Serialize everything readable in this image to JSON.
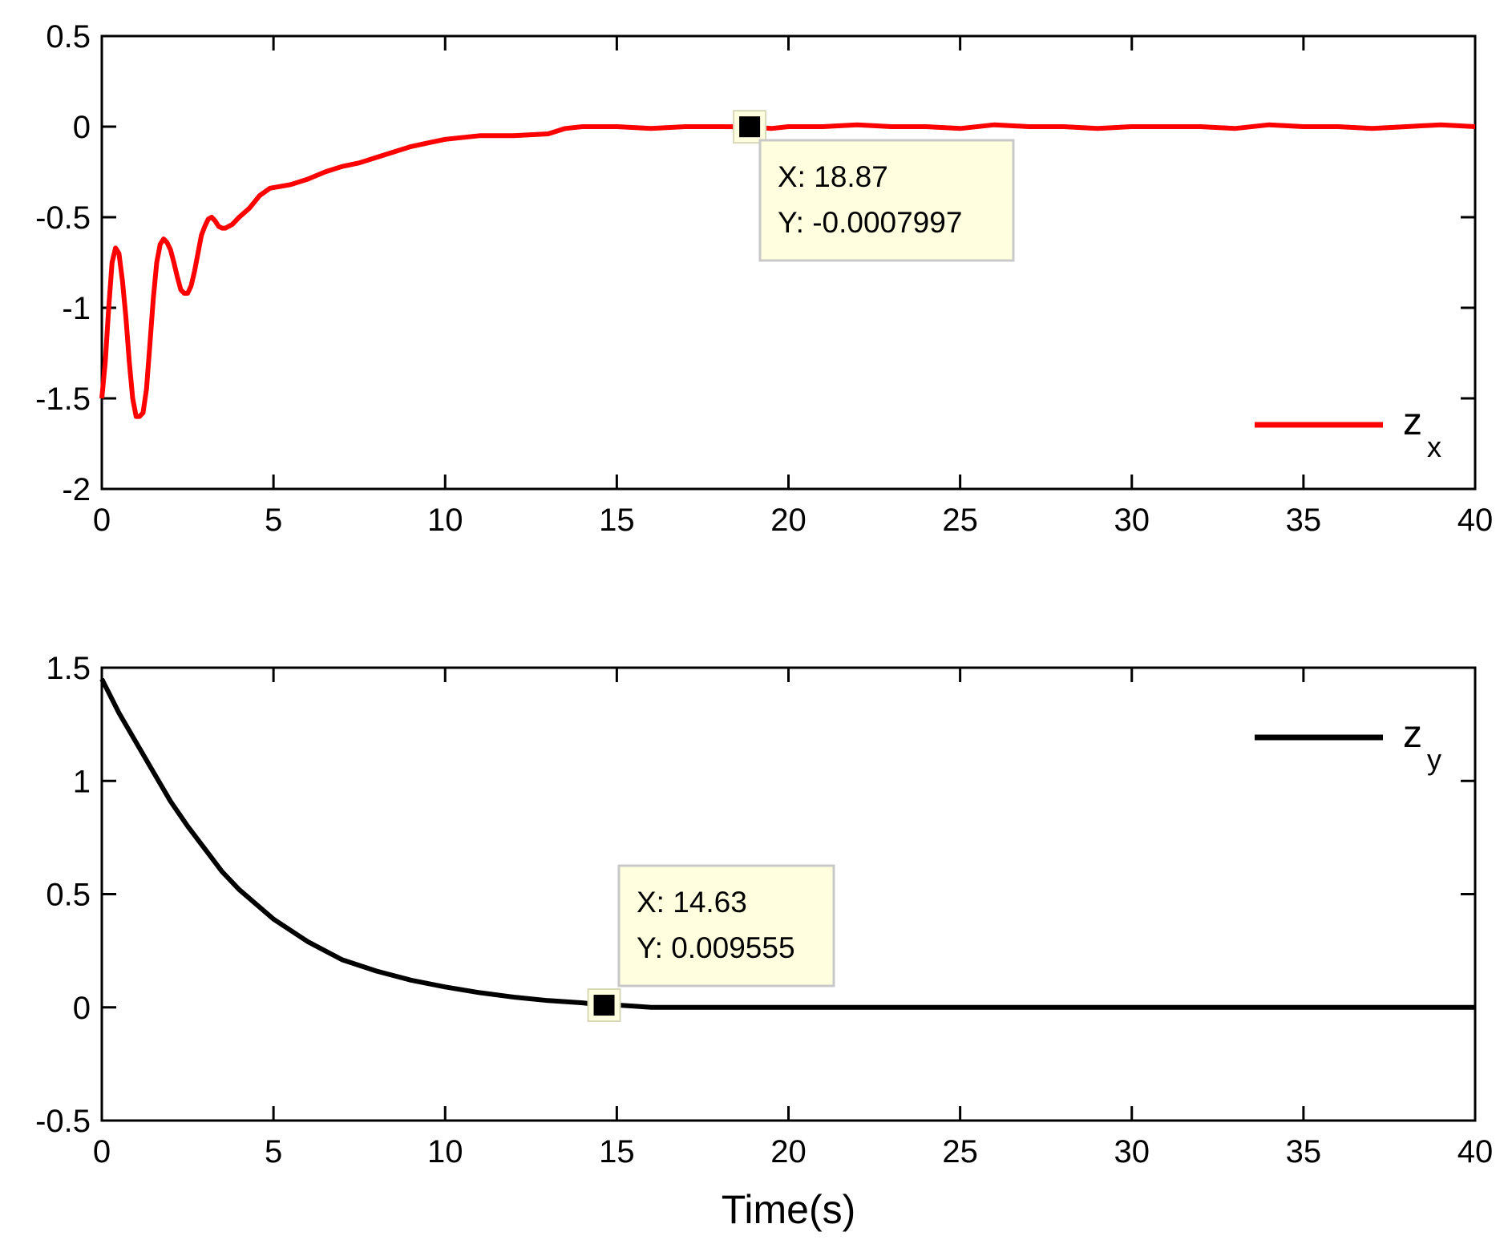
{
  "chart_data": [
    {
      "type": "line",
      "xlabel": "",
      "ylabel": "",
      "xlim": [
        0,
        40
      ],
      "ylim": [
        -2,
        0.5
      ],
      "xticks": [
        "0",
        "5",
        "10",
        "15",
        "20",
        "25",
        "30",
        "35",
        "40"
      ],
      "yticks": [
        "0.5",
        "0",
        "-0.5",
        "-1",
        "-1.5",
        "-2"
      ],
      "grid": false,
      "legend": {
        "position": "bottom-right",
        "entries": [
          {
            "name": "z",
            "subscript": "x",
            "color": "#ff0000"
          }
        ]
      },
      "series": [
        {
          "name": "z_x",
          "color": "#ff0000",
          "x": [
            0,
            0.1,
            0.2,
            0.3,
            0.4,
            0.5,
            0.6,
            0.7,
            0.8,
            0.9,
            1.0,
            1.1,
            1.2,
            1.3,
            1.4,
            1.5,
            1.6,
            1.7,
            1.8,
            1.9,
            2.0,
            2.1,
            2.2,
            2.3,
            2.4,
            2.5,
            2.6,
            2.7,
            2.8,
            2.9,
            3.0,
            3.1,
            3.2,
            3.3,
            3.4,
            3.5,
            3.6,
            3.8,
            4.0,
            4.3,
            4.6,
            4.9,
            5.2,
            5.5,
            6.0,
            6.5,
            7.0,
            7.5,
            8.0,
            8.5,
            9.0,
            9.5,
            10.0,
            11.0,
            12.0,
            13.0,
            13.5,
            14.0,
            15.0,
            16.0,
            17.0,
            18.0,
            18.87,
            19.5,
            20.0,
            21.0,
            22.0,
            23.0,
            24.0,
            25.0,
            26.0,
            27.0,
            28.0,
            29.0,
            30.0,
            31.0,
            32.0,
            33.0,
            34.0,
            35.0,
            36.0,
            37.0,
            38.0,
            39.0,
            40.0
          ],
          "y": [
            -1.5,
            -1.3,
            -1.0,
            -0.75,
            -0.67,
            -0.7,
            -0.85,
            -1.05,
            -1.3,
            -1.5,
            -1.6,
            -1.6,
            -1.58,
            -1.45,
            -1.2,
            -0.95,
            -0.75,
            -0.65,
            -0.62,
            -0.64,
            -0.68,
            -0.75,
            -0.83,
            -0.9,
            -0.92,
            -0.92,
            -0.88,
            -0.8,
            -0.7,
            -0.6,
            -0.55,
            -0.51,
            -0.5,
            -0.52,
            -0.55,
            -0.56,
            -0.56,
            -0.54,
            -0.5,
            -0.45,
            -0.38,
            -0.34,
            -0.33,
            -0.32,
            -0.29,
            -0.25,
            -0.22,
            -0.2,
            -0.17,
            -0.14,
            -0.11,
            -0.09,
            -0.07,
            -0.05,
            -0.05,
            -0.04,
            -0.01,
            0.0,
            0.0,
            -0.01,
            0.0,
            0.0,
            -0.0007997,
            -0.01,
            0.0,
            0.0,
            0.01,
            0.0,
            0.0,
            -0.01,
            0.01,
            0.0,
            0.0,
            -0.01,
            0.0,
            0.0,
            0.0,
            -0.01,
            0.01,
            0.0,
            0.0,
            -0.01,
            0.0,
            0.01,
            0.0
          ]
        }
      ],
      "datatip": {
        "x_text": "X: 18.87",
        "y_text": "Y: -0.0007997",
        "x": 18.87,
        "y": -0.0007997
      }
    },
    {
      "type": "line",
      "xlabel": "Time(s)",
      "ylabel": "",
      "xlim": [
        0,
        40
      ],
      "ylim": [
        -0.5,
        1.5
      ],
      "xticks": [
        "0",
        "5",
        "10",
        "15",
        "20",
        "25",
        "30",
        "35",
        "40"
      ],
      "yticks": [
        "1.5",
        "1",
        "0.5",
        "0",
        "-0.5"
      ],
      "grid": false,
      "legend": {
        "position": "top-right",
        "entries": [
          {
            "name": "z",
            "subscript": "y",
            "color": "#000000"
          }
        ]
      },
      "series": [
        {
          "name": "z_y",
          "color": "#000000",
          "x": [
            0,
            0.5,
            1,
            1.5,
            2,
            2.5,
            3,
            3.5,
            4,
            5,
            6,
            7,
            8,
            9,
            10,
            11,
            12,
            13,
            14,
            14.63,
            15,
            15.5,
            16,
            18,
            20,
            25,
            30,
            35,
            40
          ],
          "y": [
            1.45,
            1.3,
            1.17,
            1.04,
            0.91,
            0.8,
            0.7,
            0.6,
            0.52,
            0.39,
            0.29,
            0.21,
            0.16,
            0.12,
            0.09,
            0.065,
            0.045,
            0.03,
            0.02,
            0.009555,
            0.01,
            0.005,
            0.0,
            0.0,
            0.0,
            0.0,
            0.0,
            0.0,
            0.0
          ]
        }
      ],
      "datatip": {
        "x_text": "X: 14.63",
        "y_text": "Y: 0.009555",
        "x": 14.63,
        "y": 0.009555
      }
    }
  ]
}
